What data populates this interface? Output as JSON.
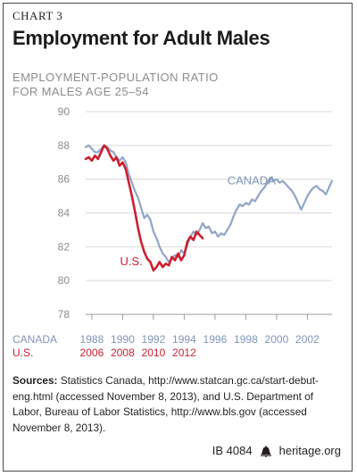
{
  "header": {
    "chart_label": "CHART 3",
    "title": "Employment for Adult Males",
    "subtitle_line1": "EMPLOYMENT-POPULATION RATIO",
    "subtitle_line2": "FOR MALES AGE 25–54"
  },
  "chart_data": {
    "type": "line",
    "title": "Employment for Adult Males",
    "ylabel": "EMPLOYMENT-POPULATION RATIO FOR MALES AGE 25–54",
    "ylim": [
      78,
      90
    ],
    "yticks": [
      "78",
      "80",
      "82",
      "84",
      "86",
      "88",
      "90"
    ],
    "ytick_values": [
      78,
      80,
      82,
      84,
      86,
      88,
      90
    ],
    "grid": true,
    "x_axes": [
      {
        "label": "CANADA",
        "color": "#7f96ba",
        "ticks": [
          "1988",
          "1990",
          "1992",
          "1994",
          "1996",
          "1998",
          "2000",
          "2002"
        ]
      },
      {
        "label": "U.S.",
        "color": "#cc1f2f",
        "ticks": [
          "2006",
          "2008",
          "2010",
          "2012"
        ]
      }
    ],
    "x_domain_canada": [
      1987.6,
      2003.6
    ],
    "series": [
      {
        "name": "CANADA",
        "color": "#8fa5c7",
        "points": [
          [
            1987.6,
            87.9
          ],
          [
            1987.8,
            88.0
          ],
          [
            1988.0,
            87.8
          ],
          [
            1988.2,
            87.6
          ],
          [
            1988.4,
            87.6
          ],
          [
            1988.6,
            87.8
          ],
          [
            1988.8,
            88.0
          ],
          [
            1989.0,
            87.9
          ],
          [
            1989.2,
            87.7
          ],
          [
            1989.4,
            87.6
          ],
          [
            1989.6,
            87.3
          ],
          [
            1989.8,
            87.1
          ],
          [
            1990.0,
            87.3
          ],
          [
            1990.2,
            87.0
          ],
          [
            1990.4,
            86.3
          ],
          [
            1990.6,
            85.8
          ],
          [
            1990.8,
            85.3
          ],
          [
            1991.0,
            84.9
          ],
          [
            1991.2,
            84.3
          ],
          [
            1991.4,
            83.7
          ],
          [
            1991.6,
            83.9
          ],
          [
            1991.8,
            83.6
          ],
          [
            1992.0,
            82.9
          ],
          [
            1992.2,
            82.5
          ],
          [
            1992.4,
            82.0
          ],
          [
            1992.6,
            81.6
          ],
          [
            1992.8,
            81.4
          ],
          [
            1993.0,
            81.1
          ],
          [
            1993.2,
            81.3
          ],
          [
            1993.4,
            81.5
          ],
          [
            1993.6,
            81.4
          ],
          [
            1993.8,
            81.8
          ],
          [
            1994.0,
            81.6
          ],
          [
            1994.2,
            82.1
          ],
          [
            1994.4,
            82.6
          ],
          [
            1994.6,
            82.9
          ],
          [
            1994.8,
            82.7
          ],
          [
            1995.0,
            83.0
          ],
          [
            1995.2,
            83.4
          ],
          [
            1995.4,
            83.1
          ],
          [
            1995.6,
            83.2
          ],
          [
            1995.8,
            82.8
          ],
          [
            1996.0,
            82.9
          ],
          [
            1996.2,
            82.6
          ],
          [
            1996.4,
            82.8
          ],
          [
            1996.6,
            82.7
          ],
          [
            1996.8,
            83.0
          ],
          [
            1997.0,
            83.3
          ],
          [
            1997.2,
            83.8
          ],
          [
            1997.4,
            84.2
          ],
          [
            1997.6,
            84.5
          ],
          [
            1997.8,
            84.4
          ],
          [
            1998.0,
            84.6
          ],
          [
            1998.2,
            84.5
          ],
          [
            1998.4,
            84.8
          ],
          [
            1998.6,
            84.7
          ],
          [
            1998.8,
            85.0
          ],
          [
            1999.0,
            85.3
          ],
          [
            1999.2,
            85.5
          ],
          [
            1999.4,
            85.8
          ],
          [
            1999.6,
            86.1
          ],
          [
            1999.8,
            85.9
          ],
          [
            2000.0,
            86.0
          ],
          [
            2000.2,
            85.8
          ],
          [
            2000.4,
            85.9
          ],
          [
            2000.6,
            85.7
          ],
          [
            2000.8,
            85.5
          ],
          [
            2001.0,
            85.3
          ],
          [
            2001.2,
            85.0
          ],
          [
            2001.4,
            84.6
          ],
          [
            2001.6,
            84.2
          ],
          [
            2001.8,
            84.6
          ],
          [
            2002.0,
            85.0
          ],
          [
            2002.2,
            85.3
          ],
          [
            2002.4,
            85.5
          ],
          [
            2002.6,
            85.6
          ],
          [
            2002.8,
            85.4
          ],
          [
            2003.0,
            85.3
          ],
          [
            2003.2,
            85.1
          ],
          [
            2003.4,
            85.5
          ],
          [
            2003.6,
            85.9
          ]
        ]
      },
      {
        "name": "U.S.",
        "color": "#cc1f2f",
        "points": [
          [
            1987.6,
            87.2
          ],
          [
            1987.8,
            87.3
          ],
          [
            1988.0,
            87.1
          ],
          [
            1988.2,
            87.4
          ],
          [
            1988.4,
            87.2
          ],
          [
            1988.6,
            87.6
          ],
          [
            1988.8,
            88.0
          ],
          [
            1989.0,
            87.8
          ],
          [
            1989.2,
            87.4
          ],
          [
            1989.4,
            87.1
          ],
          [
            1989.6,
            87.3
          ],
          [
            1989.8,
            86.8
          ],
          [
            1990.0,
            87.0
          ],
          [
            1990.2,
            86.6
          ],
          [
            1990.4,
            85.8
          ],
          [
            1990.6,
            85.0
          ],
          [
            1990.8,
            84.1
          ],
          [
            1991.0,
            83.1
          ],
          [
            1991.2,
            82.3
          ],
          [
            1991.4,
            81.7
          ],
          [
            1991.6,
            81.3
          ],
          [
            1991.8,
            81.1
          ],
          [
            1992.0,
            80.6
          ],
          [
            1992.2,
            80.8
          ],
          [
            1992.4,
            81.1
          ],
          [
            1992.6,
            80.8
          ],
          [
            1992.8,
            81.0
          ],
          [
            1993.0,
            80.9
          ],
          [
            1993.2,
            81.4
          ],
          [
            1993.4,
            81.2
          ],
          [
            1993.6,
            81.6
          ],
          [
            1993.8,
            81.2
          ],
          [
            1994.0,
            81.5
          ],
          [
            1994.2,
            82.3
          ],
          [
            1994.4,
            82.6
          ],
          [
            1994.6,
            82.4
          ],
          [
            1994.8,
            82.9
          ],
          [
            1995.0,
            82.7
          ],
          [
            1995.2,
            82.5
          ]
        ]
      }
    ],
    "annotations": [
      {
        "text": "CANADA",
        "color": "#7f96ba"
      },
      {
        "text": "U.S.",
        "color": "#cc1f2f"
      }
    ]
  },
  "sources": {
    "label": "Sources:",
    "text": " Statistics Canada, http://www.statcan.gc.ca/start-debut-eng.html (accessed November 8, 2013), and U.S. Department of Labor, Bureau of Labor Statistics, http://www.bls.gov (accessed November 8, 2013)."
  },
  "footer": {
    "id": "IB 4084",
    "site": "heritage.org",
    "icon": "liberty-bell-icon"
  }
}
